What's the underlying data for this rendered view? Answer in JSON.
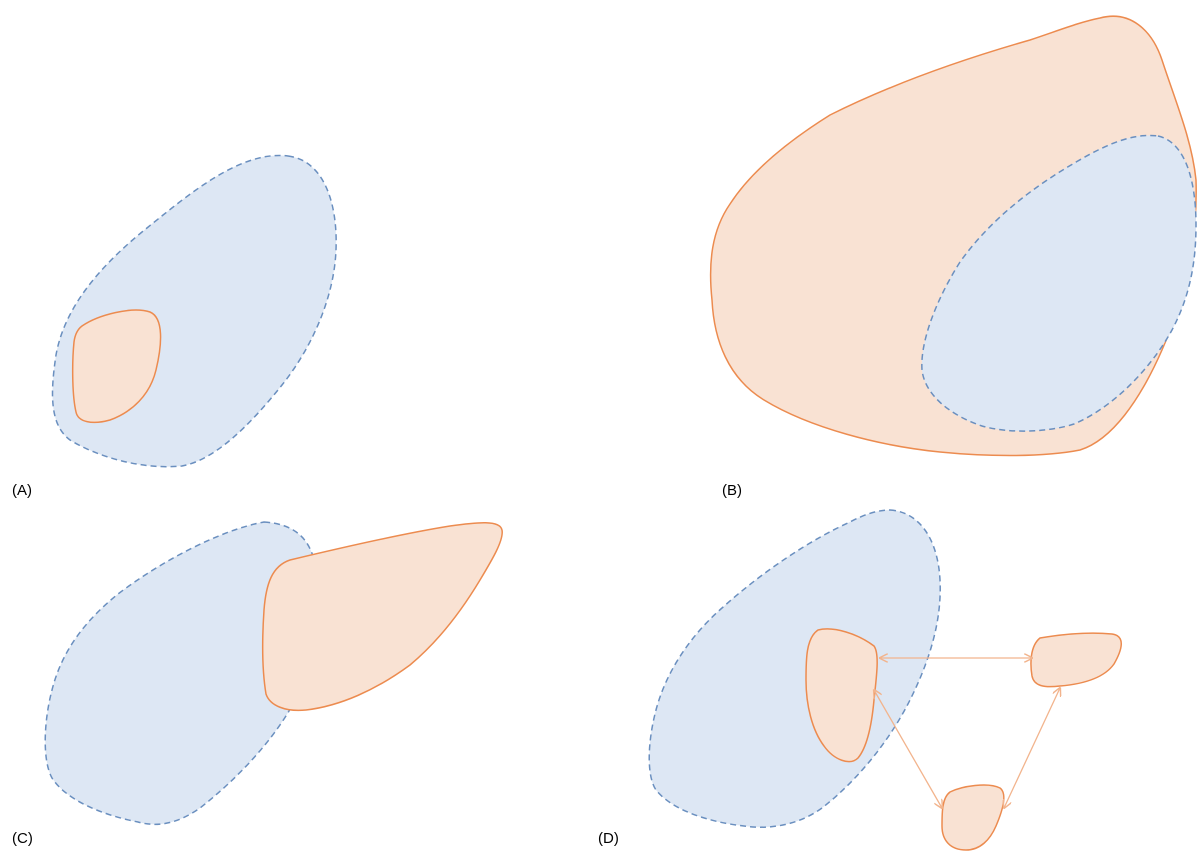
{
  "panels": [
    {
      "label": "(A)"
    },
    {
      "label": "(B)"
    },
    {
      "label": "(C)"
    },
    {
      "label": "(D)"
    }
  ],
  "colors": {
    "blue_fill": "#dde7f4",
    "blue_stroke": "#6a8fbf",
    "orange_fill": "#f9e2d3",
    "orange_stroke": "#ec8b4f",
    "arrow": "#f2b48d"
  }
}
